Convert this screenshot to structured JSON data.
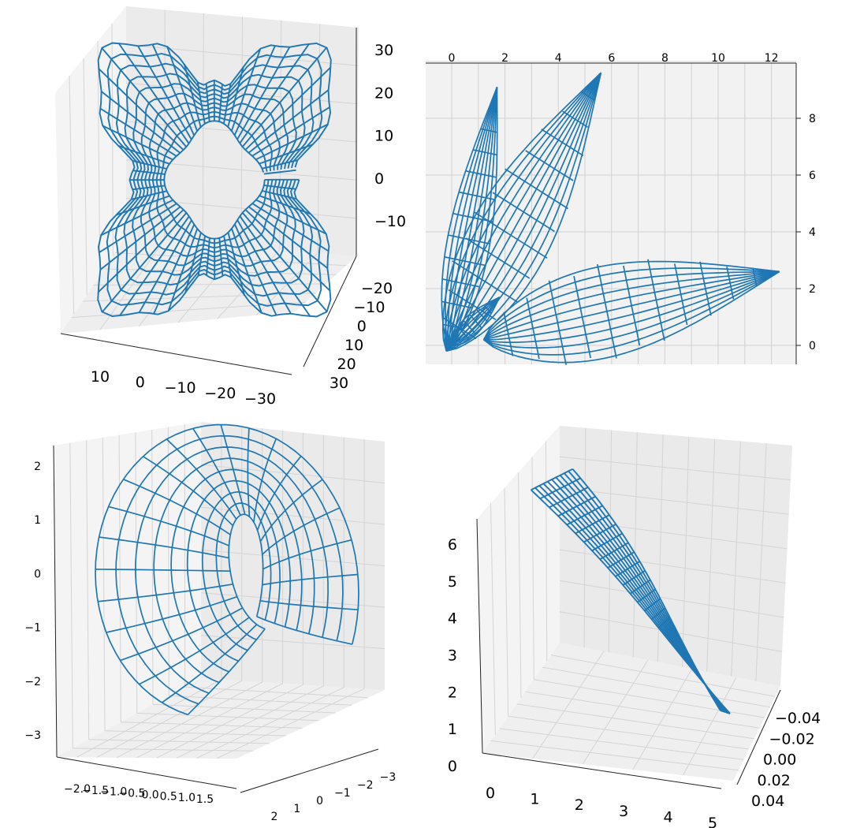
{
  "chart_data": [
    {
      "type": "wireframe-3d",
      "shape": "four-lobed ring (flower-like torus)",
      "title": "",
      "xlabel": "",
      "ylabel": "",
      "zlabel": "",
      "grid": true,
      "axes": {
        "x": {
          "ticks": [
            10,
            0,
            -10,
            -20,
            -30
          ],
          "labels": [
            "10",
            "0",
            "−10",
            "−20",
            "−30"
          ]
        },
        "y": {
          "ticks": [
            -20,
            -10,
            0,
            10,
            20,
            30
          ],
          "labels": [
            "−20",
            "−10",
            "0",
            "10",
            "20",
            "30"
          ]
        },
        "z": {
          "ticks": [
            30,
            20,
            10,
            0,
            -10
          ],
          "labels": [
            "30",
            "20",
            "10",
            "0",
            "−10"
          ]
        }
      },
      "color": "#1f77b4"
    },
    {
      "type": "wireframe-3d",
      "shape": "three petal-shaped lobes fanning out from the origin",
      "title": "",
      "xlabel": "",
      "ylabel": "",
      "grid": true,
      "view": "top-down",
      "axes": {
        "x": {
          "ticks": [
            0,
            2,
            4,
            6,
            8,
            10,
            12
          ],
          "labels": [
            "0",
            "2",
            "4",
            "6",
            "8",
            "10",
            "12"
          ]
        },
        "y": {
          "ticks": [
            8,
            6,
            4,
            2,
            0
          ],
          "labels": [
            "8",
            "6",
            "4",
            "2",
            "0"
          ]
        }
      },
      "color": "#1f77b4"
    },
    {
      "type": "wireframe-3d",
      "shape": "curled petal surface",
      "title": "",
      "xlabel": "",
      "ylabel": "",
      "zlabel": "",
      "grid": true,
      "axes": {
        "z": {
          "ticks": [
            2,
            1,
            0,
            -1,
            -2,
            -3
          ],
          "labels": [
            "2",
            "1",
            "0",
            "−1",
            "−2",
            "−3"
          ]
        },
        "x": {
          "ticks": [
            -2.0,
            -1.5,
            -1.0,
            -0.5,
            0.0,
            0.5,
            1.0,
            1.5
          ],
          "labels": [
            "−2.0",
            "−1.5",
            "−1.0",
            "−0.5",
            "0.0",
            "0.5",
            "1.0",
            "1.5"
          ]
        },
        "y": {
          "ticks": [
            2,
            1,
            0,
            -1,
            -2,
            -3
          ],
          "labels": [
            "2",
            "1",
            "0",
            "−1",
            "−2",
            "−3"
          ]
        }
      },
      "color": "#1f77b4"
    },
    {
      "type": "wireframe-3d",
      "shape": "thin twisted strip",
      "title": "",
      "xlabel": "",
      "ylabel": "",
      "zlabel": "",
      "grid": true,
      "axes": {
        "z": {
          "ticks": [
            6,
            5,
            4,
            3,
            2,
            1,
            0
          ],
          "labels": [
            "6",
            "5",
            "4",
            "3",
            "2",
            "1",
            "0"
          ]
        },
        "x": {
          "ticks": [
            0,
            1,
            2,
            3,
            4,
            5
          ],
          "labels": [
            "0",
            "1",
            "2",
            "3",
            "4",
            "5"
          ]
        },
        "y": {
          "ticks": [
            -0.04,
            -0.02,
            0.0,
            0.02,
            0.04
          ],
          "labels": [
            "−0.04",
            "−0.02",
            "0.00",
            "0.02",
            "0.04"
          ]
        }
      },
      "color": "#1f77b4"
    }
  ]
}
